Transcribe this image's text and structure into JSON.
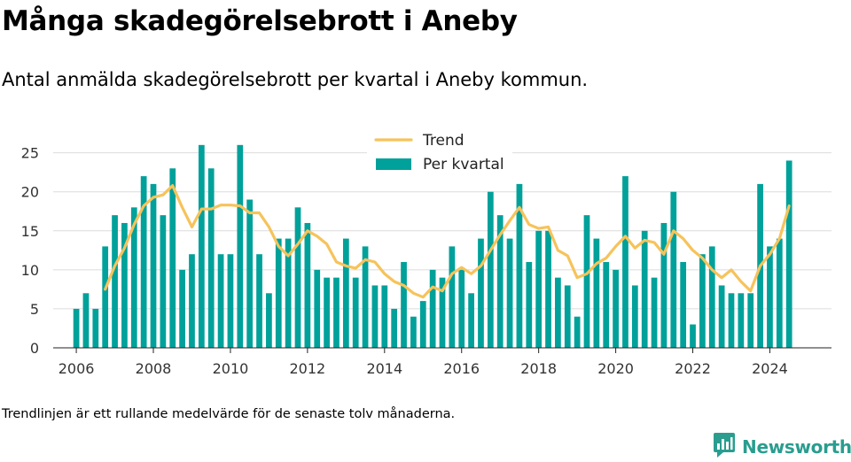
{
  "title": "Många skadegörelsebrott i Aneby",
  "subtitle": "Antal anmälda skadegörelsebrott per kvartal i Aneby kommun.",
  "footnote": "Trendlinjen är ett rullande medelvärde för de senaste tolv månaderna.",
  "brand": "Newsworthy",
  "colors": {
    "bars": "#00a19a",
    "trend": "#f6c35b",
    "grid": "#dcdcdc",
    "brand": "#2a9d8f"
  },
  "chart_data": {
    "type": "bar",
    "legend": {
      "position": "top",
      "entries": [
        {
          "name": "Trend",
          "kind": "line"
        },
        {
          "name": "Per kvartal",
          "kind": "bar"
        }
      ]
    },
    "xlim": [
      2005.4,
      2025.6
    ],
    "ylim": [
      0,
      27
    ],
    "xticks": [
      2006,
      2008,
      2010,
      2012,
      2014,
      2016,
      2018,
      2020,
      2022,
      2024
    ],
    "yticks": [
      0,
      5,
      10,
      15,
      20,
      25
    ],
    "grid": true,
    "series": [
      {
        "name": "Per kvartal",
        "type": "bar",
        "x": [
          2006.0,
          2006.25,
          2006.5,
          2006.75,
          2007.0,
          2007.25,
          2007.5,
          2007.75,
          2008.0,
          2008.25,
          2008.5,
          2008.75,
          2009.0,
          2009.25,
          2009.5,
          2009.75,
          2010.0,
          2010.25,
          2010.5,
          2010.75,
          2011.0,
          2011.25,
          2011.5,
          2011.75,
          2012.0,
          2012.25,
          2012.5,
          2012.75,
          2013.0,
          2013.25,
          2013.5,
          2013.75,
          2014.0,
          2014.25,
          2014.5,
          2014.75,
          2015.0,
          2015.25,
          2015.5,
          2015.75,
          2016.0,
          2016.25,
          2016.5,
          2016.75,
          2017.0,
          2017.25,
          2017.5,
          2017.75,
          2018.0,
          2018.25,
          2018.5,
          2018.75,
          2019.0,
          2019.25,
          2019.5,
          2019.75,
          2020.0,
          2020.25,
          2020.5,
          2020.75,
          2021.0,
          2021.25,
          2021.5,
          2021.75,
          2022.0,
          2022.25,
          2022.5,
          2022.75,
          2023.0,
          2023.25,
          2023.5,
          2023.75,
          2024.0,
          2024.25,
          2024.5
        ],
        "values": [
          5,
          7,
          5,
          13,
          17,
          16,
          18,
          22,
          21,
          17,
          23,
          10,
          12,
          26,
          23,
          12,
          12,
          26,
          19,
          12,
          7,
          14,
          14,
          18,
          16,
          10,
          9,
          9,
          14,
          9,
          13,
          8,
          8,
          5,
          11,
          4,
          6,
          10,
          9,
          13,
          10,
          7,
          14,
          20,
          17,
          14,
          21,
          11,
          15,
          15,
          9,
          8,
          4,
          17,
          14,
          11,
          10,
          22,
          8,
          15,
          9,
          16,
          20,
          11,
          3,
          12,
          13,
          8,
          7,
          7,
          7,
          21,
          13,
          14,
          24
        ]
      },
      {
        "name": "Trend",
        "type": "line",
        "x": [
          2006.75,
          2007.0,
          2007.25,
          2007.5,
          2007.75,
          2008.0,
          2008.25,
          2008.5,
          2008.75,
          2009.0,
          2009.25,
          2009.5,
          2009.75,
          2010.0,
          2010.25,
          2010.5,
          2010.75,
          2011.0,
          2011.25,
          2011.5,
          2011.75,
          2012.0,
          2012.25,
          2012.5,
          2012.75,
          2013.0,
          2013.25,
          2013.5,
          2013.75,
          2014.0,
          2014.25,
          2014.5,
          2014.75,
          2015.0,
          2015.25,
          2015.5,
          2015.75,
          2016.0,
          2016.25,
          2016.5,
          2016.75,
          2017.0,
          2017.25,
          2017.5,
          2017.75,
          2018.0,
          2018.25,
          2018.5,
          2018.75,
          2019.0,
          2019.25,
          2019.5,
          2019.75,
          2020.0,
          2020.25,
          2020.5,
          2020.75,
          2021.0,
          2021.25,
          2021.5,
          2021.75,
          2022.0,
          2022.25,
          2022.5,
          2022.75,
          2023.0,
          2023.25,
          2023.5,
          2023.75,
          2024.0,
          2024.25,
          2024.5
        ],
        "values": [
          7.5,
          10.5,
          12.8,
          15.8,
          18.2,
          19.3,
          19.6,
          20.8,
          18.0,
          15.5,
          17.8,
          17.8,
          18.3,
          18.3,
          18.2,
          17.3,
          17.3,
          15.5,
          13.0,
          11.8,
          13.3,
          15.0,
          14.3,
          13.3,
          11.0,
          10.5,
          10.2,
          11.3,
          11.0,
          9.5,
          8.5,
          8.0,
          7.0,
          6.5,
          7.8,
          7.3,
          9.5,
          10.3,
          9.5,
          10.5,
          12.5,
          14.5,
          16.3,
          18.0,
          15.8,
          15.3,
          15.5,
          12.5,
          11.8,
          9.0,
          9.5,
          10.8,
          11.5,
          13.0,
          14.3,
          12.8,
          13.8,
          13.5,
          12.0,
          15.0,
          14.0,
          12.5,
          11.5,
          10.0,
          9.0,
          10.0,
          8.5,
          7.3,
          10.5,
          12.0,
          14.0,
          18.2
        ]
      }
    ]
  }
}
